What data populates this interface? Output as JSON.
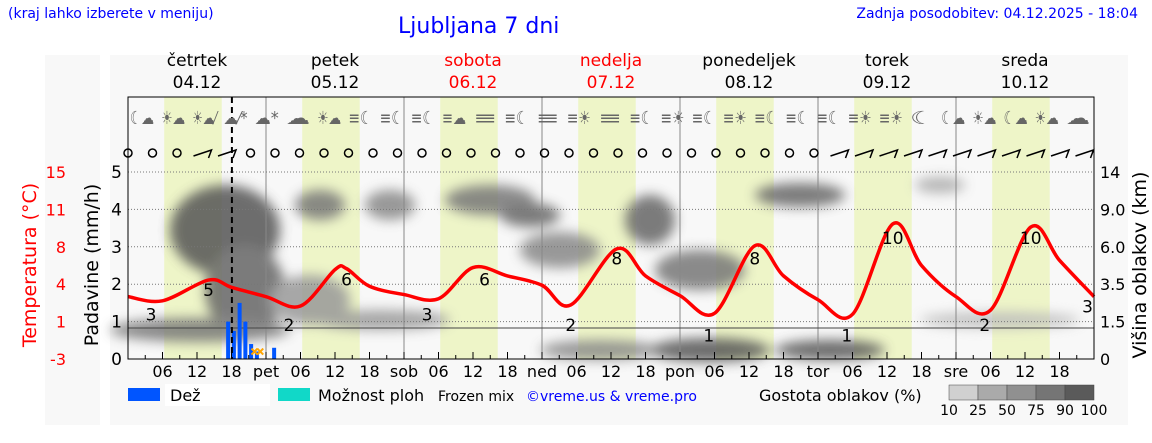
{
  "header": {
    "hint": "(kraj lahko izberete v meniju)",
    "title": "Ljubljana 7 dni",
    "updated": "Zadnja posodobitev: 04.12.2025 - 18:04"
  },
  "days": [
    {
      "name": "četrtek",
      "date": "04.12",
      "weekend": false
    },
    {
      "name": "petek",
      "date": "05.12",
      "weekend": false
    },
    {
      "name": "sobota",
      "date": "06.12",
      "weekend": true
    },
    {
      "name": "nedelja",
      "date": "07.12",
      "weekend": true
    },
    {
      "name": "ponedeljek",
      "date": "08.12",
      "weekend": false
    },
    {
      "name": "torek",
      "date": "09.12",
      "weekend": false
    },
    {
      "name": "sreda",
      "date": "10.12",
      "weekend": false
    }
  ],
  "colors": {
    "temperature": "#ff0000",
    "rain": "#0055ff",
    "showers": "#11d8c8",
    "daylight": "#eef5c8",
    "weekend": "#ff0000",
    "link": "#0000ff"
  },
  "weather_icons": [
    "moon-cloud",
    "sun-cloud",
    "sun-cloud-rain",
    "cloud-rain-snow",
    "cloud-snow",
    "cloud",
    "sun-cloud",
    "fog-moon",
    "fog-moon",
    "fog-moon",
    "fog-cloud",
    "fog",
    "fog-moon",
    "fog",
    "fog-sun",
    "fog",
    "fog-moon",
    "fog-sun",
    "fog-moon",
    "fog-sun",
    "fog-moon",
    "fog-moon",
    "fog-moon",
    "fog-sun",
    "fog-sun",
    "moon",
    "moon-cloud",
    "sun-cloud",
    "moon-cloud",
    "sun-cloud",
    "cloud"
  ],
  "chart_data": {
    "type": "line",
    "x_unit": "hour",
    "x_ticks": [
      "06",
      "12",
      "18",
      "pet",
      "06",
      "12",
      "18",
      "sob",
      "06",
      "12",
      "18",
      "ned",
      "06",
      "12",
      "18",
      "pon",
      "06",
      "12",
      "18",
      "tor",
      "06",
      "12",
      "18",
      "sre",
      "06",
      "12",
      "18"
    ],
    "now_marker": "04.12.2025 18:04",
    "left_axis": {
      "label": "Padavine (mm/h)",
      "ticks": [
        "0",
        "1",
        "2",
        "3",
        "4",
        "5"
      ],
      "range": [
        0,
        5
      ]
    },
    "temp_axis": {
      "label": "Temperatura (°C)",
      "ticks": [
        "-3",
        "1",
        "4",
        "8",
        "11",
        "15"
      ],
      "range": [
        -3,
        15
      ]
    },
    "right_axis": {
      "label": "Višina oblakov (km)",
      "ticks": [
        "0",
        "1.5",
        "3.5",
        "6.0",
        "9.0",
        "14"
      ]
    },
    "temperature": [
      [
        0,
        3.0
      ],
      [
        6,
        2.6
      ],
      [
        14,
        4.6
      ],
      [
        18,
        3.9
      ],
      [
        24,
        3.0
      ],
      [
        30,
        2.1
      ],
      [
        36,
        5.6
      ],
      [
        38,
        5.7
      ],
      [
        42,
        4.0
      ],
      [
        48,
        3.2
      ],
      [
        54,
        2.8
      ],
      [
        60,
        5.8
      ],
      [
        66,
        5.0
      ],
      [
        72,
        4.1
      ],
      [
        77,
        2.2
      ],
      [
        85,
        7.6
      ],
      [
        90,
        5.0
      ],
      [
        96,
        3.1
      ],
      [
        102,
        1.4
      ],
      [
        109,
        7.9
      ],
      [
        114,
        5.0
      ],
      [
        120,
        2.7
      ],
      [
        126,
        1.3
      ],
      [
        133,
        10.0
      ],
      [
        138,
        6.0
      ],
      [
        144,
        3.0
      ],
      [
        150,
        1.7
      ],
      [
        157,
        9.7
      ],
      [
        162,
        6.5
      ],
      [
        168,
        3.0
      ]
    ],
    "temp_labels": [
      [
        4,
        "3"
      ],
      [
        14,
        "5"
      ],
      [
        28,
        "2"
      ],
      [
        38,
        "6"
      ],
      [
        52,
        "3"
      ],
      [
        62,
        "6"
      ],
      [
        77,
        "2"
      ],
      [
        85,
        "8"
      ],
      [
        101,
        "1"
      ],
      [
        109,
        "8"
      ],
      [
        125,
        "1"
      ],
      [
        133,
        "10"
      ],
      [
        149,
        "2"
      ],
      [
        157,
        "10"
      ],
      [
        168,
        "3"
      ]
    ],
    "rain": [
      [
        17.5,
        1.0
      ],
      [
        18.5,
        0.75
      ],
      [
        19.5,
        1.5
      ],
      [
        20.5,
        1.0
      ],
      [
        21.5,
        0.4
      ],
      [
        22.5,
        0.2
      ],
      [
        25.5,
        0.3
      ]
    ],
    "frozen_mix": [
      [
        22,
        0.2
      ],
      [
        23,
        0.2
      ]
    ]
  },
  "legend": {
    "rain": "Dež",
    "showers": "Možnost ploh",
    "frozen": "Frozen mix",
    "credit": "©vreme.us & vreme.pro",
    "cloud_density": "Gostota oblakov (%)",
    "cloud_scale": [
      "10",
      "25",
      "50",
      "75",
      "90",
      "100"
    ]
  }
}
